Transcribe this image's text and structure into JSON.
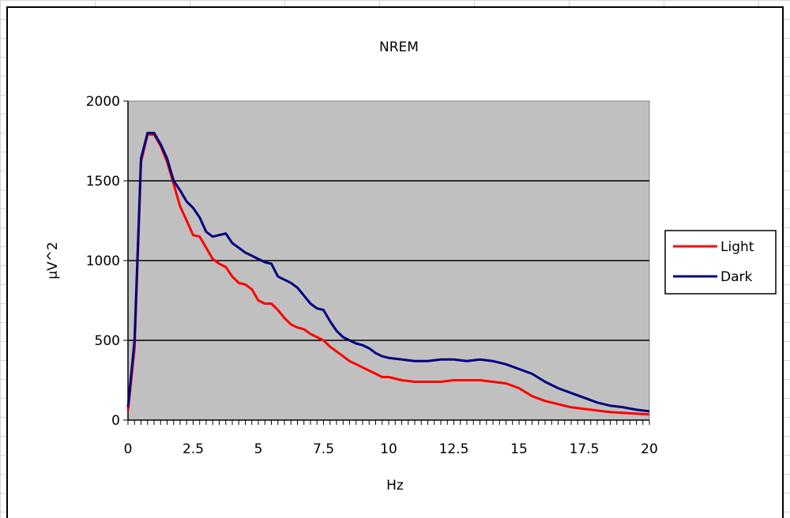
{
  "chart_data": {
    "type": "line",
    "title": "NREM",
    "xlabel": "Hz",
    "ylabel": "μV^2",
    "xlim": [
      0,
      20
    ],
    "ylim": [
      0,
      2000
    ],
    "x_ticks": [
      "0",
      "2.5",
      "5",
      "7.5",
      "10",
      "12.5",
      "15",
      "17.5",
      "20"
    ],
    "y_ticks": [
      "0",
      "500",
      "1000",
      "1500",
      "2000"
    ],
    "grid": "horizontal major gridlines",
    "legend_position": "right",
    "plot_background": "#c0c0c0",
    "series": [
      {
        "name": "Light",
        "color": "#ff0000",
        "x": [
          0,
          0.25,
          0.5,
          0.75,
          1.0,
          1.25,
          1.5,
          1.75,
          2.0,
          2.25,
          2.5,
          2.75,
          3.0,
          3.25,
          3.5,
          3.75,
          4.0,
          4.25,
          4.5,
          4.75,
          5.0,
          5.25,
          5.5,
          5.75,
          6.0,
          6.25,
          6.5,
          6.75,
          7.0,
          7.25,
          7.5,
          7.75,
          8.0,
          8.25,
          8.5,
          8.75,
          9.0,
          9.25,
          9.5,
          9.75,
          10.0,
          10.5,
          11.0,
          11.5,
          12.0,
          12.5,
          13.0,
          13.5,
          14.0,
          14.5,
          15.0,
          15.5,
          16.0,
          16.5,
          17.0,
          17.5,
          18.0,
          18.5,
          19.0,
          19.5,
          20.0
        ],
        "values": [
          60,
          450,
          1620,
          1790,
          1790,
          1720,
          1620,
          1480,
          1340,
          1250,
          1160,
          1150,
          1080,
          1010,
          980,
          960,
          900,
          860,
          850,
          820,
          750,
          730,
          730,
          690,
          640,
          600,
          580,
          570,
          540,
          520,
          500,
          460,
          430,
          400,
          370,
          350,
          330,
          310,
          290,
          270,
          270,
          250,
          240,
          240,
          240,
          250,
          250,
          250,
          240,
          230,
          200,
          150,
          120,
          100,
          80,
          70,
          60,
          50,
          45,
          40,
          35
        ]
      },
      {
        "name": "Dark",
        "color": "#000080",
        "x": [
          0,
          0.25,
          0.5,
          0.75,
          1.0,
          1.25,
          1.5,
          1.75,
          2.0,
          2.25,
          2.5,
          2.75,
          3.0,
          3.25,
          3.5,
          3.75,
          4.0,
          4.25,
          4.5,
          4.75,
          5.0,
          5.25,
          5.5,
          5.75,
          6.0,
          6.25,
          6.5,
          6.75,
          7.0,
          7.25,
          7.5,
          7.75,
          8.0,
          8.25,
          8.5,
          8.75,
          9.0,
          9.25,
          9.5,
          9.75,
          10.0,
          10.5,
          11.0,
          11.5,
          12.0,
          12.5,
          13.0,
          13.5,
          14.0,
          14.5,
          15.0,
          15.5,
          16.0,
          16.5,
          17.0,
          17.5,
          18.0,
          18.5,
          19.0,
          19.5,
          20.0
        ],
        "values": [
          80,
          500,
          1640,
          1800,
          1800,
          1730,
          1640,
          1500,
          1440,
          1370,
          1330,
          1270,
          1180,
          1150,
          1160,
          1170,
          1110,
          1080,
          1050,
          1030,
          1010,
          990,
          980,
          900,
          880,
          860,
          830,
          780,
          730,
          700,
          690,
          620,
          560,
          520,
          500,
          480,
          470,
          450,
          420,
          400,
          390,
          380,
          370,
          370,
          380,
          380,
          370,
          380,
          370,
          350,
          320,
          290,
          240,
          200,
          170,
          140,
          110,
          90,
          80,
          65,
          55
        ]
      }
    ]
  }
}
